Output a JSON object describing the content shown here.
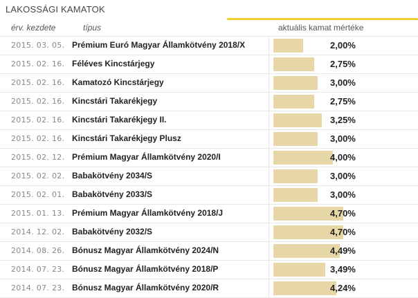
{
  "widget": {
    "title": "LAKOSSÁGI KAMATOK",
    "columns": {
      "date": "érv. kezdete",
      "type": "típus",
      "rate": "aktuális kamat mértéke"
    },
    "accent_color": "#f2cf2e",
    "bar_color": "#e8d7a6",
    "rows": [
      {
        "date": "2015. 03. 05.",
        "type": "Prémium Euró Magyar Államkötvény 2018/X",
        "rate": "2,00%",
        "rate_value": 2.0
      },
      {
        "date": "2015. 02. 16.",
        "type": "Féléves Kincstárjegy",
        "rate": "2,75%",
        "rate_value": 2.75
      },
      {
        "date": "2015. 02. 16.",
        "type": "Kamatozó Kincstárjegy",
        "rate": "3,00%",
        "rate_value": 3.0
      },
      {
        "date": "2015. 02. 16.",
        "type": "Kincstári Takarékjegy",
        "rate": "2,75%",
        "rate_value": 2.75
      },
      {
        "date": "2015. 02. 16.",
        "type": "Kincstári Takarékjegy II.",
        "rate": "3,25%",
        "rate_value": 3.25
      },
      {
        "date": "2015. 02. 16.",
        "type": "Kincstári Takarékjegy Plusz",
        "rate": "3,00%",
        "rate_value": 3.0
      },
      {
        "date": "2015. 02. 12.",
        "type": "Prémium Magyar Államkötvény 2020/I",
        "rate": "4,00%",
        "rate_value": 4.0
      },
      {
        "date": "2015. 02. 02.",
        "type": "Babakötvény 2034/S",
        "rate": "3,00%",
        "rate_value": 3.0
      },
      {
        "date": "2015. 02. 01.",
        "type": "Babakötvény 2033/S",
        "rate": "3,00%",
        "rate_value": 3.0
      },
      {
        "date": "2015. 01. 13.",
        "type": "Prémium Magyar Államkötvény 2018/J",
        "rate": "4,70%",
        "rate_value": 4.7
      },
      {
        "date": "2014. 12. 02.",
        "type": "Babakötvény 2032/S",
        "rate": "4,70%",
        "rate_value": 4.7
      },
      {
        "date": "2014. 08. 26.",
        "type": "Bónusz Magyar Államkötvény 2024/N",
        "rate": "4,49%",
        "rate_value": 4.49
      },
      {
        "date": "2014. 07. 23.",
        "type": "Bónusz Magyar Államkötvény 2018/P",
        "rate": "3,49%",
        "rate_value": 3.49
      },
      {
        "date": "2014. 07. 23.",
        "type": "Bónusz Magyar Államkötvény 2020/R",
        "rate": "4,24%",
        "rate_value": 4.24
      }
    ]
  }
}
